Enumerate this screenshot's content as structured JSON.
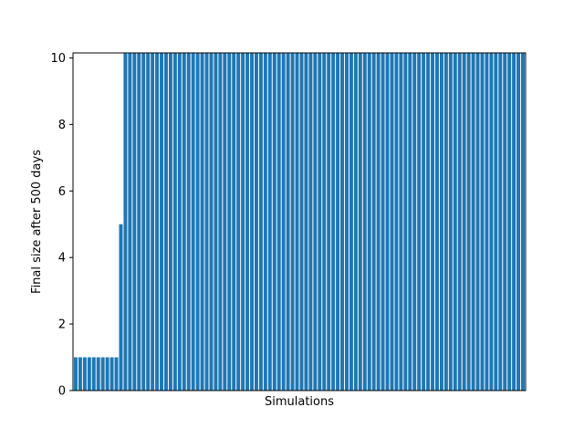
{
  "chart_data": {
    "type": "bar",
    "xlabel": "Simulations",
    "ylabel": "Final size after 500 days",
    "ylim": [
      0,
      10.15
    ],
    "yticks": [
      0,
      2,
      4,
      6,
      8,
      10
    ],
    "ytick_labels": [
      "0",
      "2",
      "4",
      "6",
      "8",
      "10"
    ],
    "xticks_visible": false,
    "grid": false,
    "bar_color": "#1f77b4",
    "series": [
      {
        "values": [
          1,
          1,
          1,
          1,
          1,
          1,
          1,
          1,
          1,
          1,
          5,
          11,
          11,
          11,
          11,
          11,
          11,
          11,
          11,
          11,
          11,
          11,
          11,
          11,
          11,
          11,
          11,
          11,
          11,
          11,
          11,
          11,
          11,
          11,
          11,
          11,
          11,
          11,
          11,
          11,
          11,
          11,
          11,
          11,
          11,
          11,
          11,
          11,
          11,
          11,
          11,
          11,
          11,
          11,
          11,
          11,
          11,
          11,
          11,
          11,
          11,
          11,
          11,
          11,
          11,
          11,
          11,
          11,
          11,
          11,
          11,
          11,
          11,
          11,
          11,
          11,
          11,
          11,
          11,
          11,
          11,
          11,
          11,
          11,
          11,
          11,
          11,
          11,
          11,
          11,
          11,
          11,
          11,
          11,
          11,
          11,
          11,
          11,
          11,
          11
        ]
      }
    ]
  }
}
